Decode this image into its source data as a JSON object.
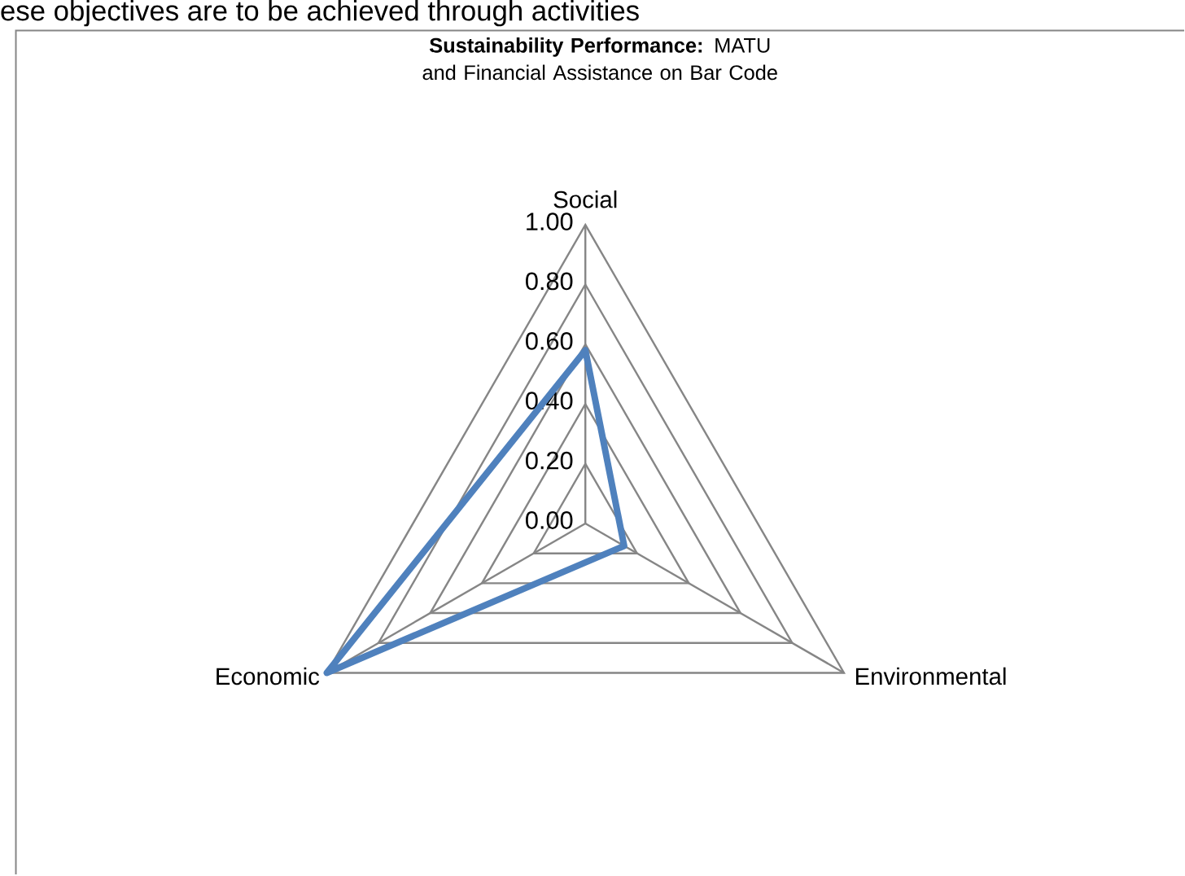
{
  "chart_data": {
    "type": "radar",
    "title": "**Sustainability Performance:** MATU and Financial Assistance on Bar Code",
    "annotations": [
      "ese objectives are to be achieved through activities"
    ],
    "categories": [
      "Social",
      "Environmental",
      "Economic"
    ],
    "series": [
      {
        "color": "#4f81bd",
        "values": [
          0.58,
          0.15,
          1.0
        ]
      }
    ],
    "ylim": [
      0,
      1
    ],
    "yticks": [
      {
        "value": 0,
        "label": "0.00"
      },
      {
        "value": 0.2,
        "label": "0.20"
      },
      {
        "value": 0.4,
        "label": "0.40"
      },
      {
        "value": 0.6,
        "label": "0.60"
      },
      {
        "value": 0.8,
        "label": "0.80"
      },
      {
        "value": 1,
        "label": "1.00"
      }
    ],
    "grid": true
  }
}
